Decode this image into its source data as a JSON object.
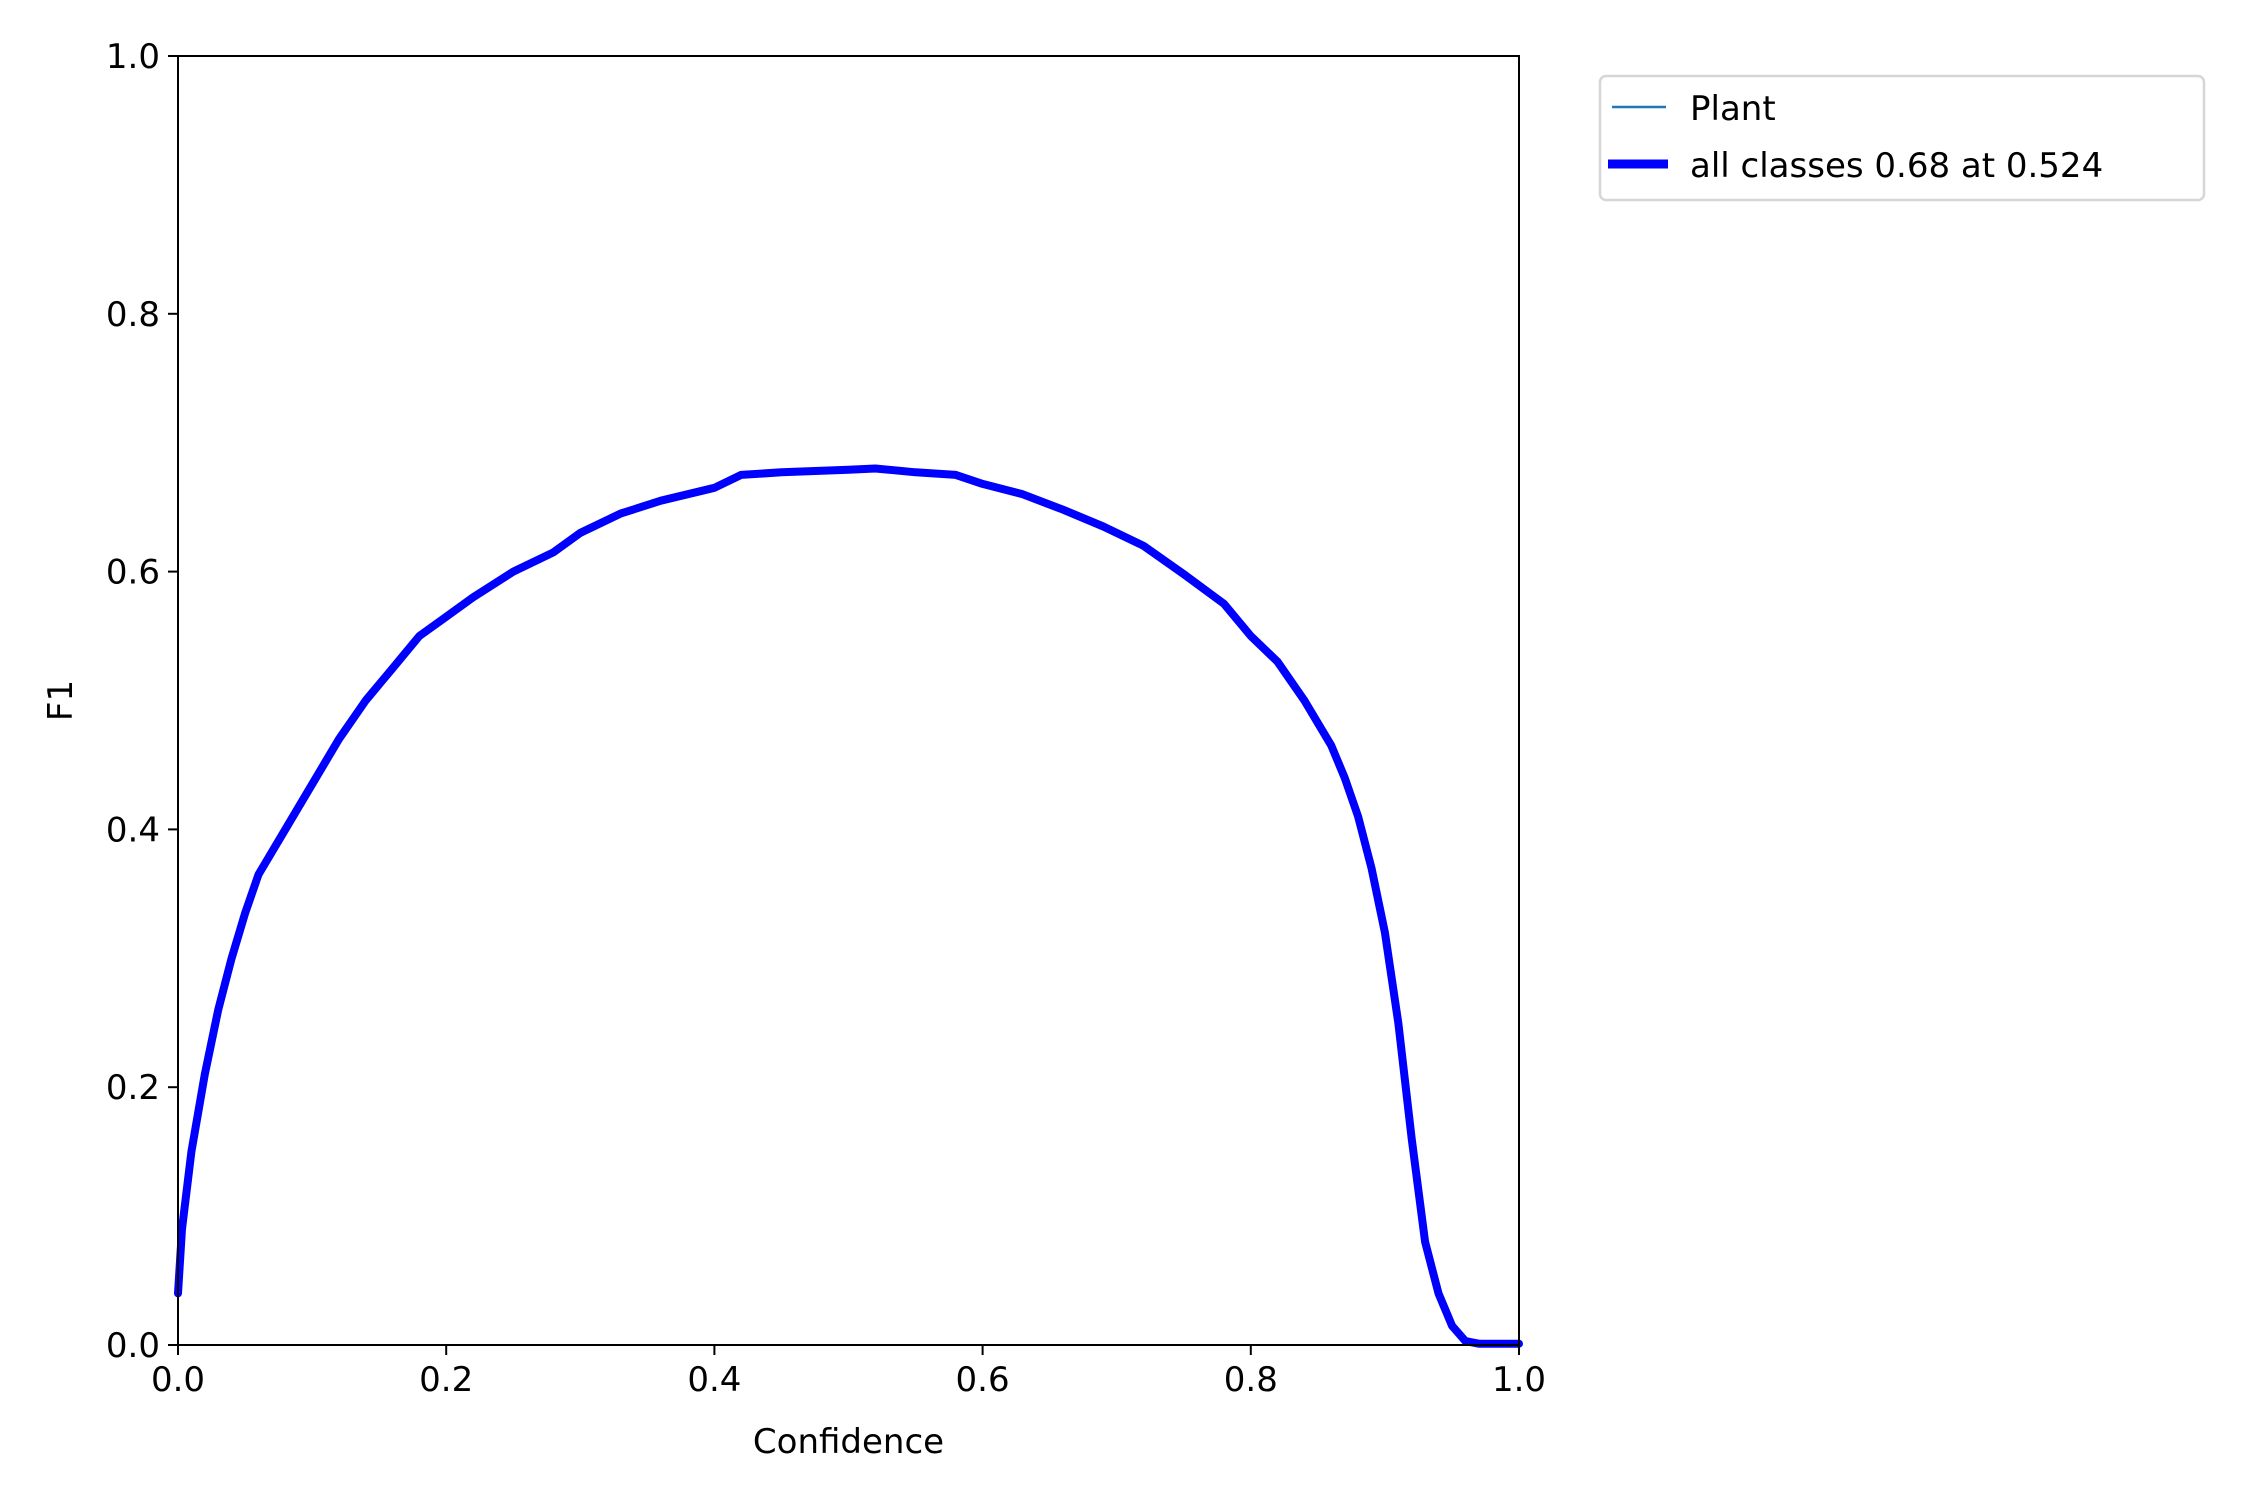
{
  "chart_data": {
    "type": "line",
    "title": "",
    "xlabel": "Confidence",
    "ylabel": "F1",
    "xlim": [
      0,
      1
    ],
    "ylim": [
      0,
      1
    ],
    "grid": false,
    "legend_placement": "outside-top-right",
    "xticks": [
      "0.0",
      "0.2",
      "0.4",
      "0.6",
      "0.8",
      "1.0"
    ],
    "yticks": [
      "0.0",
      "0.2",
      "0.4",
      "0.6",
      "0.8",
      "1.0"
    ],
    "series": [
      {
        "name": "Plant",
        "color": "#1f77b4",
        "x": [
          0.0,
          0.003,
          0.01,
          0.02,
          0.03,
          0.04,
          0.05,
          0.06,
          0.08,
          0.1,
          0.12,
          0.14,
          0.16,
          0.18,
          0.2,
          0.22,
          0.25,
          0.28,
          0.3,
          0.33,
          0.36,
          0.4,
          0.42,
          0.45,
          0.5,
          0.52,
          0.55,
          0.58,
          0.6,
          0.63,
          0.66,
          0.69,
          0.72,
          0.75,
          0.78,
          0.8,
          0.82,
          0.84,
          0.86,
          0.87,
          0.88,
          0.89,
          0.9,
          0.91,
          0.92,
          0.93,
          0.94,
          0.95,
          0.96,
          0.97,
          1.0
        ],
        "y": [
          0.04,
          0.09,
          0.15,
          0.21,
          0.26,
          0.3,
          0.335,
          0.365,
          0.4,
          0.435,
          0.47,
          0.5,
          0.525,
          0.55,
          0.565,
          0.58,
          0.6,
          0.615,
          0.63,
          0.645,
          0.655,
          0.665,
          0.675,
          0.677,
          0.679,
          0.68,
          0.677,
          0.675,
          0.668,
          0.66,
          0.648,
          0.635,
          0.62,
          0.598,
          0.575,
          0.55,
          0.53,
          0.5,
          0.465,
          0.44,
          0.41,
          0.37,
          0.32,
          0.25,
          0.16,
          0.08,
          0.04,
          0.015,
          0.003,
          0.001,
          0.001
        ]
      },
      {
        "name": "all classes 0.68 at 0.524",
        "color": "#0000ff",
        "x": [
          0.0,
          0.003,
          0.01,
          0.02,
          0.03,
          0.04,
          0.05,
          0.06,
          0.08,
          0.1,
          0.12,
          0.14,
          0.16,
          0.18,
          0.2,
          0.22,
          0.25,
          0.28,
          0.3,
          0.33,
          0.36,
          0.4,
          0.42,
          0.45,
          0.5,
          0.52,
          0.55,
          0.58,
          0.6,
          0.63,
          0.66,
          0.69,
          0.72,
          0.75,
          0.78,
          0.8,
          0.82,
          0.84,
          0.86,
          0.87,
          0.88,
          0.89,
          0.9,
          0.91,
          0.92,
          0.93,
          0.94,
          0.95,
          0.96,
          0.97,
          1.0
        ],
        "y": [
          0.04,
          0.09,
          0.15,
          0.21,
          0.26,
          0.3,
          0.335,
          0.365,
          0.4,
          0.435,
          0.47,
          0.5,
          0.525,
          0.55,
          0.565,
          0.58,
          0.6,
          0.615,
          0.63,
          0.645,
          0.655,
          0.665,
          0.675,
          0.677,
          0.679,
          0.68,
          0.677,
          0.675,
          0.668,
          0.66,
          0.648,
          0.635,
          0.62,
          0.598,
          0.575,
          0.55,
          0.53,
          0.5,
          0.465,
          0.44,
          0.41,
          0.37,
          0.32,
          0.25,
          0.16,
          0.08,
          0.04,
          0.015,
          0.003,
          0.001,
          0.001
        ]
      }
    ]
  }
}
